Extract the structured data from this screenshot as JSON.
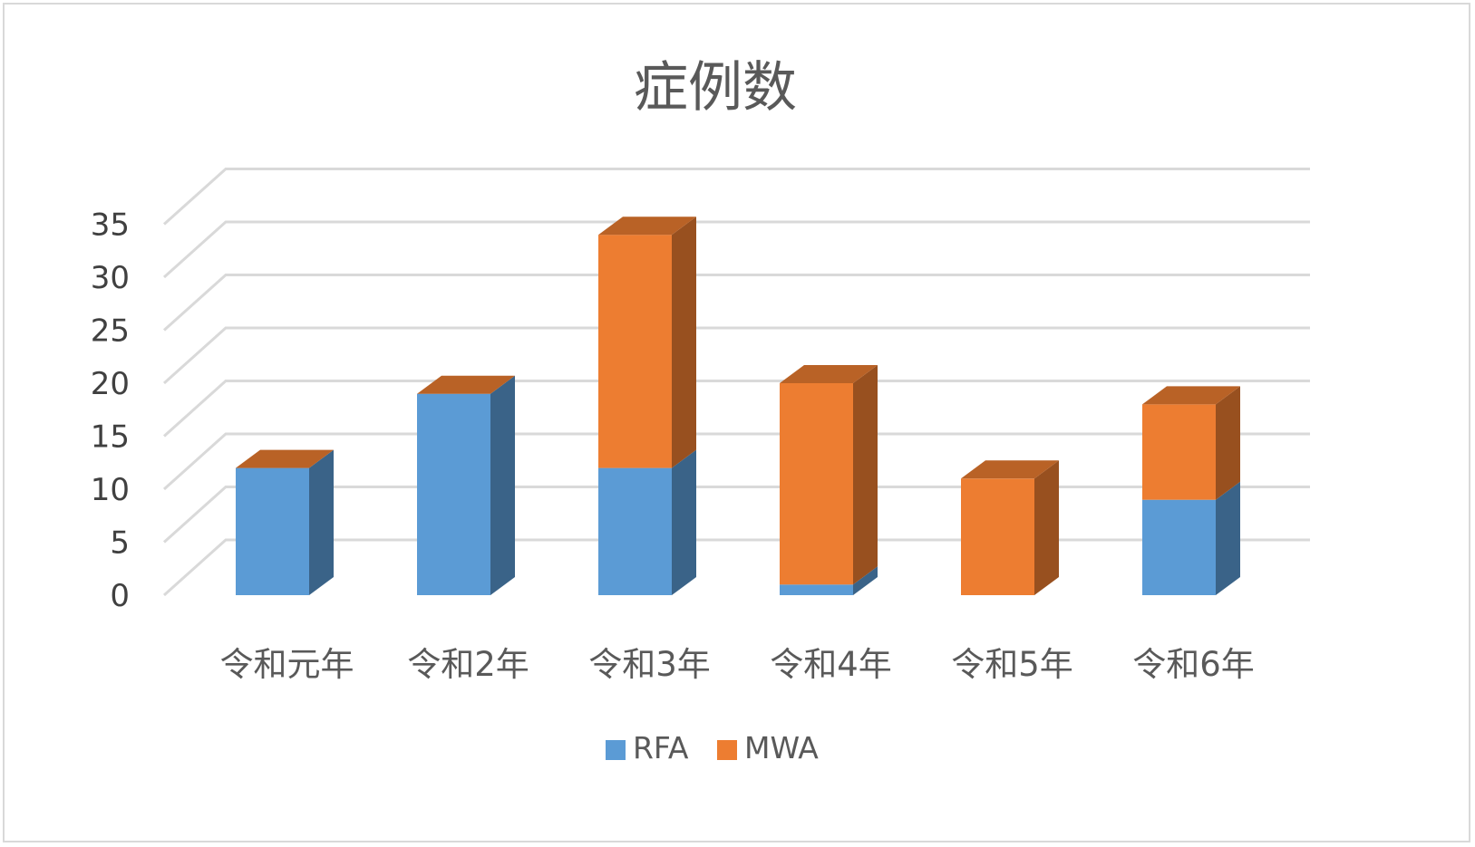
{
  "chart_data": {
    "type": "bar",
    "variant": "3d-stacked-column",
    "title": "症例数",
    "xlabel": "",
    "ylabel": "",
    "categories": [
      "令和元年",
      "令和2年",
      "令和3年",
      "令和4年",
      "令和5年",
      "令和6年"
    ],
    "series": [
      {
        "name": "RFA",
        "values": [
          12,
          19,
          12,
          1,
          0,
          9
        ],
        "color": "#5b9bd5"
      },
      {
        "name": "MWA",
        "values": [
          0,
          0,
          22,
          19,
          11,
          9
        ],
        "color": "#ed7d31"
      }
    ],
    "ylim": [
      0,
      35
    ],
    "yticks": [
      0,
      5,
      10,
      15,
      20,
      25,
      30,
      35
    ],
    "grid": true,
    "legend": "bottom"
  }
}
